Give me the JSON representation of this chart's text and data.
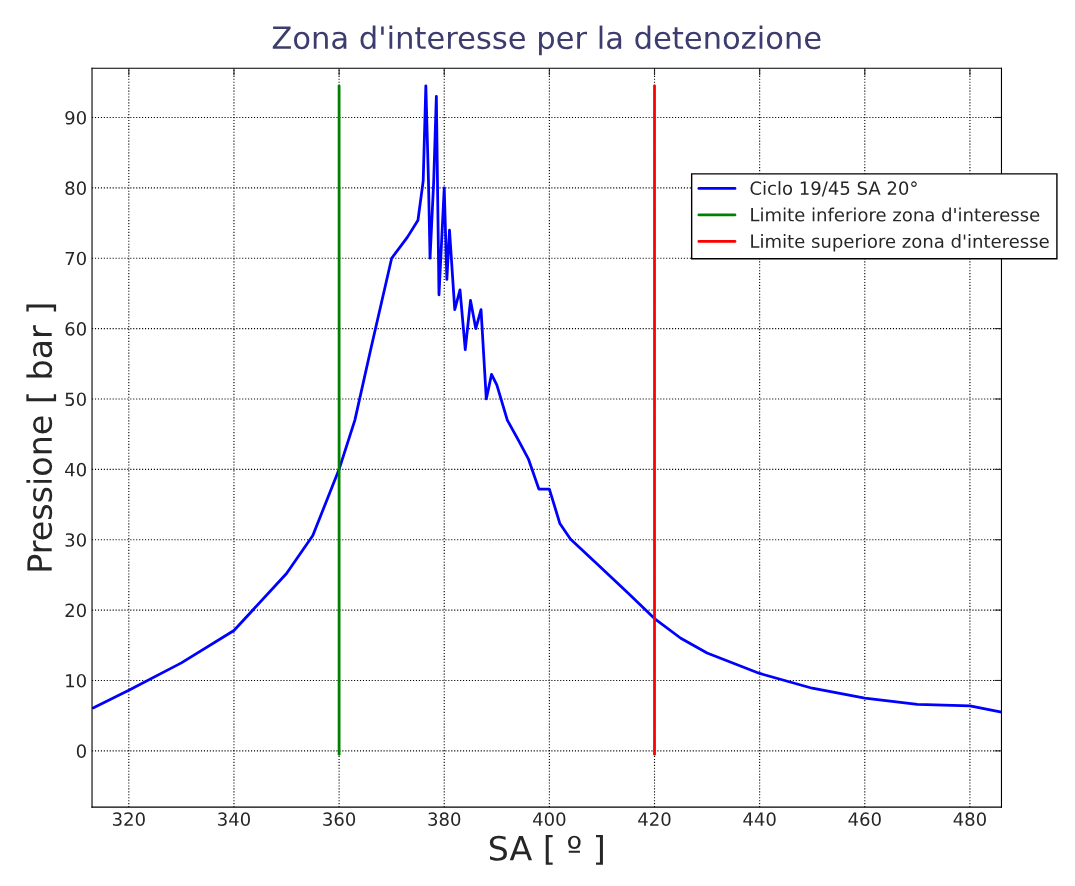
{
  "chart_data": {
    "type": "line",
    "title": "Zona d'interesse per la detenozione",
    "xlabel": "SA [ º ]",
    "ylabel": "Pressione [ bar ]",
    "xlim": [
      313,
      486
    ],
    "ylim": [
      -8,
      97
    ],
    "xticks": [
      320,
      340,
      360,
      380,
      400,
      420,
      440,
      460,
      480
    ],
    "yticks": [
      0,
      10,
      20,
      30,
      40,
      50,
      60,
      70,
      80,
      90
    ],
    "grid": true,
    "legend": "top right",
    "line_style": "solid",
    "marker": "none",
    "series": [
      {
        "name": "Ciclo 19/45 SA 20°",
        "color": "#0000ff",
        "x": [
          313.2,
          320,
          330,
          340,
          350,
          355,
          360,
          363,
          366,
          370,
          373,
          375,
          376,
          376.5,
          377,
          377.3,
          378,
          378.5,
          379,
          380,
          380.5,
          381,
          382,
          383,
          384,
          385,
          386,
          387,
          388,
          389,
          390,
          392,
          394,
          396,
          398,
          400,
          402,
          404,
          407,
          410,
          415,
          420,
          425,
          430,
          440,
          450,
          460,
          470,
          480,
          486
        ],
        "values": [
          6.1,
          8.6,
          12.5,
          17.1,
          25.2,
          30.6,
          40,
          47,
          57,
          70,
          73,
          75.4,
          81,
          94.5,
          81,
          70,
          81,
          93,
          64.8,
          80,
          67,
          74,
          62.7,
          65.5,
          57,
          64,
          60,
          62.7,
          50,
          53.5,
          52,
          47,
          44.3,
          41.5,
          37.2,
          37.2,
          32.3,
          30.1,
          28,
          25.9,
          22.4,
          18.8,
          16,
          13.9,
          11,
          8.9,
          7.5,
          6.6,
          6.4,
          5.5
        ]
      },
      {
        "name": "Limite inferiore zona d'interesse",
        "color": "#008000",
        "x": [
          360,
          360
        ],
        "values": [
          -0.5,
          94.5
        ]
      },
      {
        "name": "Limite superiore zona d'interesse",
        "color": "#ff0000",
        "x": [
          420,
          420
        ],
        "values": [
          -0.5,
          94.5
        ]
      }
    ]
  }
}
